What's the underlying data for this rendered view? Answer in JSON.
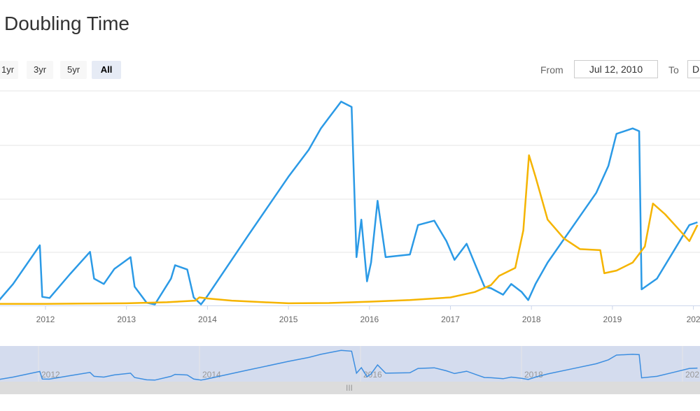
{
  "header": {
    "title": "Doubling Time"
  },
  "range_selector": {
    "buttons": [
      {
        "label": "1yr",
        "active": false
      },
      {
        "label": "3yr",
        "active": false
      },
      {
        "label": "5yr",
        "active": false
      },
      {
        "label": "All",
        "active": true
      }
    ],
    "from_label": "From",
    "from_value": "Jul 12, 2010",
    "to_label": "To",
    "to_value": "D"
  },
  "navigator": {
    "handle_glyph": "III"
  },
  "chart_data": {
    "type": "line",
    "title": "Doubling Time",
    "x_ticks": [
      "2012",
      "2013",
      "2014",
      "2015",
      "2016",
      "2017",
      "2018",
      "2019",
      "202"
    ],
    "navigator_ticks": [
      "2012",
      "2014",
      "2016",
      "2018",
      "202"
    ],
    "grid": true,
    "y_axis_labels_visible": false,
    "colors": {
      "blue": "#2b9ae6",
      "orange": "#f5b400",
      "grid": "#e6e6e6",
      "navigator_fill": "#ccd6eb"
    },
    "series": [
      {
        "color": "#2b9ae6",
        "points": [
          [
            2011.4,
            0.5
          ],
          [
            2011.6,
            4.0
          ],
          [
            2011.93,
            11.2
          ],
          [
            2011.96,
            1.6
          ],
          [
            2012.05,
            1.4
          ],
          [
            2012.3,
            5.8
          ],
          [
            2012.55,
            10.0
          ],
          [
            2012.6,
            5.0
          ],
          [
            2012.72,
            4.0
          ],
          [
            2012.85,
            6.8
          ],
          [
            2013.05,
            9.0
          ],
          [
            2013.1,
            3.5
          ],
          [
            2013.25,
            0.5
          ],
          [
            2013.35,
            0.2
          ],
          [
            2013.55,
            5.0
          ],
          [
            2013.6,
            7.5
          ],
          [
            2013.75,
            6.7
          ],
          [
            2013.83,
            1.5
          ],
          [
            2013.92,
            0.2
          ],
          [
            2014.0,
            1.8
          ],
          [
            2014.5,
            13.0
          ],
          [
            2015.0,
            24.0
          ],
          [
            2015.25,
            29.0
          ],
          [
            2015.4,
            33.0
          ],
          [
            2015.5,
            35.0
          ],
          [
            2015.65,
            38.0
          ],
          [
            2015.78,
            37.0
          ],
          [
            2015.84,
            9.0
          ],
          [
            2015.9,
            16.0
          ],
          [
            2015.97,
            4.5
          ],
          [
            2016.02,
            8.0
          ],
          [
            2016.1,
            19.5
          ],
          [
            2016.2,
            9.0
          ],
          [
            2016.5,
            9.5
          ],
          [
            2016.6,
            15.0
          ],
          [
            2016.8,
            15.8
          ],
          [
            2016.95,
            12.0
          ],
          [
            2017.05,
            8.5
          ],
          [
            2017.2,
            11.5
          ],
          [
            2017.35,
            6.0
          ],
          [
            2017.42,
            3.5
          ],
          [
            2017.5,
            3.2
          ],
          [
            2017.65,
            2.0
          ],
          [
            2017.75,
            4.0
          ],
          [
            2017.88,
            2.5
          ],
          [
            2017.96,
            1.0
          ],
          [
            2018.05,
            4.0
          ],
          [
            2018.2,
            8.0
          ],
          [
            2018.5,
            14.5
          ],
          [
            2018.8,
            21.0
          ],
          [
            2018.95,
            26.0
          ],
          [
            2019.05,
            32.0
          ],
          [
            2019.25,
            33.0
          ],
          [
            2019.33,
            32.5
          ],
          [
            2019.36,
            3.0
          ],
          [
            2019.55,
            5.0
          ],
          [
            2019.75,
            10.0
          ],
          [
            2019.95,
            15.0
          ],
          [
            2020.05,
            15.5
          ]
        ]
      },
      {
        "color": "#f5b400",
        "points": [
          [
            2011.4,
            0.3
          ],
          [
            2012.0,
            0.3
          ],
          [
            2012.5,
            0.35
          ],
          [
            2013.0,
            0.4
          ],
          [
            2013.5,
            0.6
          ],
          [
            2013.85,
            0.9
          ],
          [
            2013.9,
            1.5
          ],
          [
            2014.0,
            1.3
          ],
          [
            2014.3,
            0.9
          ],
          [
            2014.7,
            0.6
          ],
          [
            2015.0,
            0.4
          ],
          [
            2015.5,
            0.45
          ],
          [
            2016.0,
            0.7
          ],
          [
            2016.5,
            1.0
          ],
          [
            2017.0,
            1.5
          ],
          [
            2017.3,
            2.5
          ],
          [
            2017.5,
            3.8
          ],
          [
            2017.6,
            5.5
          ],
          [
            2017.8,
            7.0
          ],
          [
            2017.9,
            14.0
          ],
          [
            2017.97,
            28.0
          ],
          [
            2018.05,
            24.0
          ],
          [
            2018.2,
            16.0
          ],
          [
            2018.4,
            12.5
          ],
          [
            2018.6,
            10.5
          ],
          [
            2018.85,
            10.3
          ],
          [
            2018.9,
            6.0
          ],
          [
            2019.05,
            6.5
          ],
          [
            2019.25,
            8.0
          ],
          [
            2019.4,
            11.0
          ],
          [
            2019.5,
            19.0
          ],
          [
            2019.65,
            17.0
          ],
          [
            2019.8,
            14.5
          ],
          [
            2019.95,
            12.0
          ],
          [
            2020.05,
            15.0
          ]
        ]
      }
    ]
  }
}
